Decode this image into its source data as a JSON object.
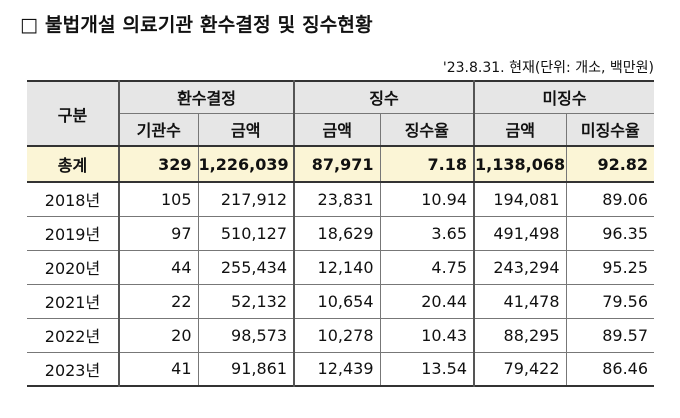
{
  "title": "□ 불법개설 의료기관 환수결정 및 징수현황",
  "note": "'23.8.31. 현재(단위: 개소, 백만원)",
  "headers": {
    "gubun": "구분",
    "hwansu": "환수결정",
    "jingsu": "징수",
    "mijingsu": "미징수",
    "sub": [
      "기관수",
      "금액",
      "금액",
      "징수율",
      "금액",
      "미징수율"
    ]
  },
  "rows": [
    {
      "label": "총계",
      "cells": [
        "329",
        "1,226,039",
        "87,971",
        "7.18",
        "1,138,068",
        "92.82"
      ]
    },
    {
      "label": "2018년",
      "cells": [
        "105",
        "217,912",
        "23,831",
        "10.94",
        "194,081",
        "89.06"
      ]
    },
    {
      "label": "2019년",
      "cells": [
        "97",
        "510,127",
        "18,629",
        "3.65",
        "491,498",
        "96.35"
      ]
    },
    {
      "label": "2020년",
      "cells": [
        "44",
        "255,434",
        "12,140",
        "4.75",
        "243,294",
        "95.25"
      ]
    },
    {
      "label": "2021년",
      "cells": [
        "22",
        "52,132",
        "10,654",
        "20.44",
        "41,478",
        "79.56"
      ]
    },
    {
      "label": "2022년",
      "cells": [
        "20",
        "98,573",
        "10,278",
        "10.43",
        "88,295",
        "89.57"
      ]
    },
    {
      "label": "2023년",
      "cells": [
        "41",
        "91,861",
        "12,439",
        "13.54",
        "79,422",
        "86.46"
      ]
    }
  ]
}
